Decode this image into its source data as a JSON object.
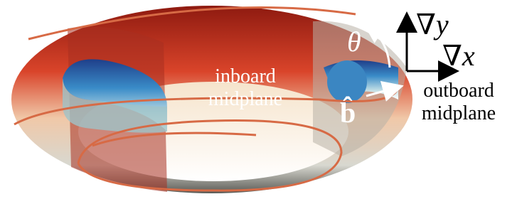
{
  "labels": {
    "theta": "θ",
    "grad_y": "∇y",
    "grad_x": "∇x",
    "b_hat": "b̂",
    "inboard": [
      "inboard",
      "midplane"
    ],
    "outboard": [
      "outboard",
      "midplane"
    ]
  }
}
